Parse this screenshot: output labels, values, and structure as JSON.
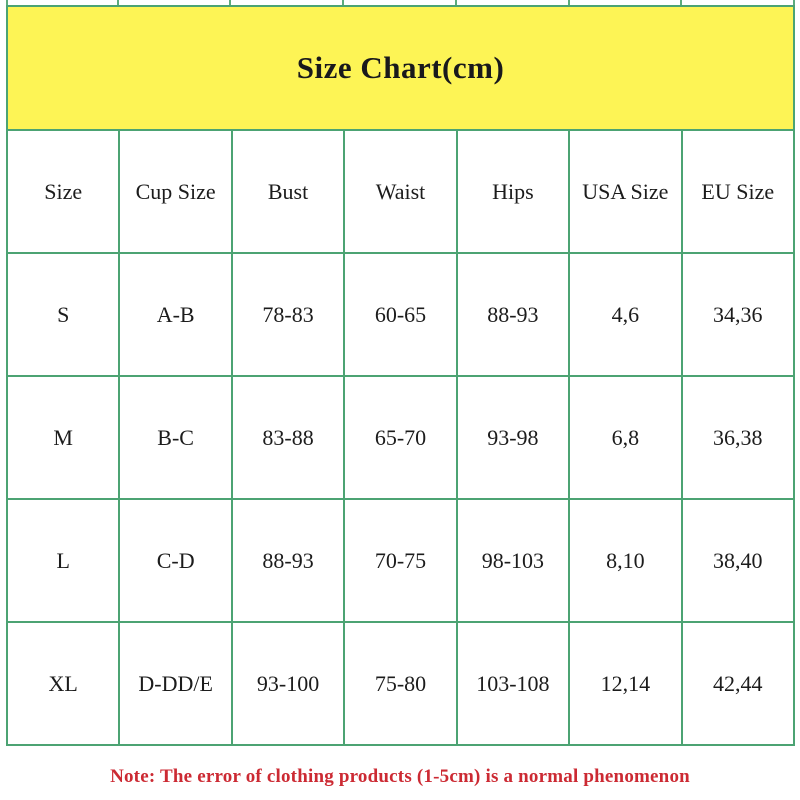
{
  "chart_data": {
    "type": "table",
    "title": "Size Chart(cm)",
    "unit": "cm",
    "columns": [
      "Size",
      "Cup Size",
      "Bust",
      "Waist",
      "Hips",
      "USA Size",
      "EU Size"
    ],
    "rows": [
      [
        "S",
        "A-B",
        "78-83",
        "60-65",
        "88-93",
        "4,6",
        "34,36"
      ],
      [
        "M",
        "B-C",
        "83-88",
        "65-70",
        "93-98",
        "6,8",
        "36,38"
      ],
      [
        "L",
        "C-D",
        "88-93",
        "70-75",
        "98-103",
        "8,10",
        "38,40"
      ],
      [
        "XL",
        "D-DD/E",
        "93-100",
        "75-80",
        "103-108",
        "12,14",
        "42,44"
      ]
    ],
    "note": "Note: The error of clothing products (1-5cm) is a normal phenomenon"
  },
  "colors": {
    "banner_background": "#fdf455",
    "grid_border": "#4ca373",
    "note_text": "#cc2a33",
    "body_text": "#1c1c1c"
  }
}
